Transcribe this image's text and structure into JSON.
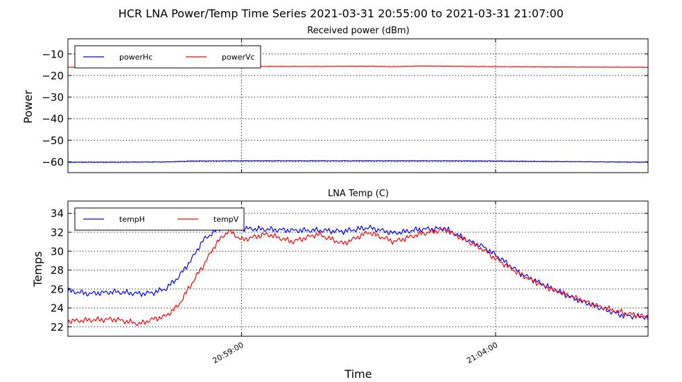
{
  "figure_title": "HCR LNA Power/Temp Time Series 2021-03-31 20:55:00 to 2021-03-31 21:07:00",
  "xlabel": "Time",
  "colors": {
    "H": "#0000ff",
    "V": "#ff0000",
    "axis": "#000000"
  },
  "chart_data": [
    {
      "type": "line",
      "title": "Received power (dBm)",
      "xlabel": "",
      "ylabel": "Power",
      "xlim": [
        "2021-03-31 20:55:35",
        "2021-03-31 21:07:00"
      ],
      "ylim": [
        -65,
        -3
      ],
      "yticks": [
        -10,
        -20,
        -30,
        -40,
        -50,
        -60
      ],
      "ytick_labels": [
        "−10",
        "−20",
        "−30",
        "−40",
        "−50",
        "−60"
      ],
      "xticks": [
        "2021-03-31 20:59:00",
        "2021-03-31 21:04:00"
      ],
      "xtick_labels": [
        "",
        ""
      ],
      "grid": true,
      "legend": "top-left",
      "series": [
        {
          "name": "powerHc",
          "color": "#0000ff",
          "x": [
            "20:55:35",
            "20:56:30",
            "20:57:00",
            "20:57:30",
            "20:58:00",
            "20:59:00",
            "21:00:00",
            "21:01:00",
            "21:02:00",
            "21:03:00",
            "21:04:00",
            "21:05:00",
            "21:06:00",
            "21:07:00"
          ],
          "values": [
            -60.2,
            -60.2,
            -60.1,
            -60.1,
            -59.6,
            -59.5,
            -59.5,
            -59.5,
            -59.5,
            -59.5,
            -59.6,
            -59.8,
            -60.0,
            -60.2
          ]
        },
        {
          "name": "powerVc",
          "color": "#ff0000",
          "x": [
            "20:55:35",
            "20:56:30",
            "20:57:30",
            "20:58:30",
            "20:59:00",
            "20:59:30",
            "21:00:30",
            "21:01:30",
            "21:02:00",
            "21:02:30",
            "21:03:00",
            "21:04:00",
            "21:05:00",
            "21:06:00",
            "21:07:00"
          ],
          "values": [
            -16.2,
            -16.1,
            -15.9,
            -15.6,
            -15.6,
            -15.8,
            -15.8,
            -15.7,
            -15.9,
            -15.6,
            -15.7,
            -15.9,
            -16.0,
            -16.1,
            -16.2
          ]
        }
      ]
    },
    {
      "type": "line",
      "title": "LNA Temp (C)",
      "xlabel": "Time",
      "ylabel": "Temps",
      "xlim": [
        "2021-03-31 20:55:35",
        "2021-03-31 21:07:00"
      ],
      "ylim": [
        21,
        35.3
      ],
      "yticks": [
        22,
        24,
        26,
        28,
        30,
        32,
        34
      ],
      "ytick_labels": [
        "22",
        "24",
        "26",
        "28",
        "30",
        "32",
        "34"
      ],
      "xticks": [
        "2021-03-31 20:59:00",
        "2021-03-31 21:04:00"
      ],
      "xtick_labels": [
        "20:59:00",
        "21:04:00"
      ],
      "grid": true,
      "legend": "top-left",
      "series": [
        {
          "name": "tempH",
          "color": "#0000ff",
          "x": [
            "20:55:35",
            "20:56:00",
            "20:56:30",
            "20:57:00",
            "20:57:15",
            "20:57:30",
            "20:57:45",
            "20:58:00",
            "20:58:15",
            "20:58:30",
            "20:58:45",
            "20:59:00",
            "20:59:30",
            "21:00:00",
            "21:00:30",
            "21:01:00",
            "21:01:30",
            "21:02:00",
            "21:02:30",
            "21:03:00",
            "21:03:15",
            "21:03:30",
            "21:03:45",
            "21:04:00",
            "21:04:30",
            "21:05:00",
            "21:05:30",
            "21:06:00",
            "21:06:30",
            "21:07:00"
          ],
          "values": [
            25.8,
            25.5,
            25.7,
            25.5,
            25.6,
            26.0,
            27.2,
            29.0,
            31.2,
            32.2,
            32.8,
            32.4,
            32.3,
            32.2,
            32.2,
            32.1,
            32.5,
            31.9,
            32.3,
            32.4,
            31.7,
            31.0,
            30.5,
            29.6,
            27.6,
            26.3,
            25.1,
            24.1,
            23.2,
            23.0
          ]
        },
        {
          "name": "tempV",
          "color": "#ff0000",
          "x": [
            "20:55:35",
            "20:56:00",
            "20:56:30",
            "20:57:00",
            "20:57:15",
            "20:57:30",
            "20:57:45",
            "20:58:00",
            "20:58:15",
            "20:58:30",
            "20:58:45",
            "20:59:00",
            "20:59:30",
            "21:00:00",
            "21:00:30",
            "21:01:00",
            "21:01:30",
            "21:02:00",
            "21:02:30",
            "21:03:00",
            "21:03:15",
            "21:03:30",
            "21:03:45",
            "21:04:00",
            "21:04:30",
            "21:05:00",
            "21:05:30",
            "21:06:00",
            "21:06:30",
            "21:07:00"
          ],
          "values": [
            22.6,
            22.7,
            22.8,
            22.3,
            22.8,
            23.1,
            24.2,
            26.4,
            28.5,
            30.8,
            32.2,
            31.2,
            31.8,
            31.0,
            31.8,
            30.8,
            32.0,
            31.0,
            31.8,
            32.3,
            31.6,
            30.9,
            30.2,
            29.2,
            27.5,
            26.2,
            25.2,
            24.2,
            23.5,
            23.0
          ]
        }
      ]
    }
  ]
}
